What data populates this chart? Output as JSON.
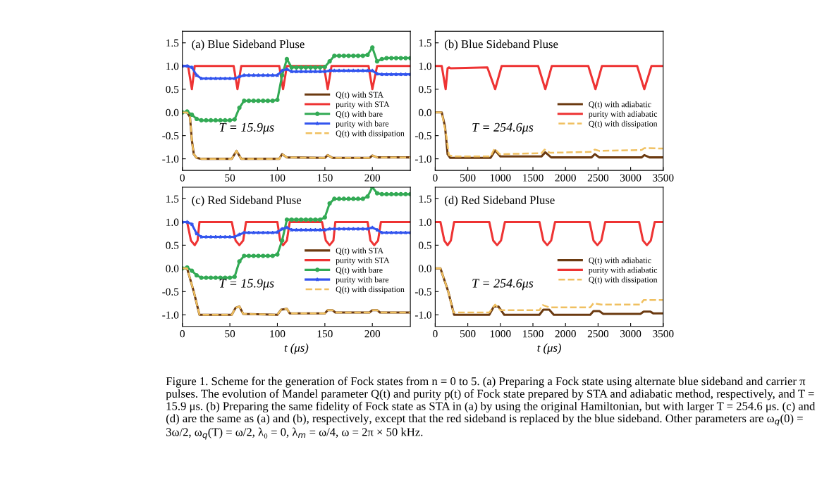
{
  "chart_data": [
    {
      "type": "line",
      "title": "(a) Blue Sideband Pluse",
      "xlim": [
        0,
        240
      ],
      "xticks": [
        0,
        50,
        100,
        150,
        200
      ],
      "ylim": [
        -1.25,
        1.75
      ],
      "yticks": [
        {
          "value": -1,
          "label": "-1.0"
        },
        {
          "value": -0.5,
          "label": "-0.5"
        },
        {
          "value": 0,
          "label": "0.0"
        },
        {
          "value": 0.5,
          "label": "0.5"
        },
        {
          "value": 1,
          "label": "1.0"
        },
        {
          "value": 1.5,
          "label": "1.5"
        }
      ],
      "legend": "center right",
      "grid": false,
      "annotations": [
        "T = 15.9μs"
      ],
      "series": [
        {
          "name": "Q(t) with STA",
          "color": "#6b3a10",
          "x": [
            0,
            5,
            8,
            10,
            12,
            15,
            20,
            52,
            57,
            62,
            102,
            105,
            110,
            150,
            153,
            158,
            197,
            200,
            205,
            240
          ],
          "values": [
            0,
            0,
            -0.1,
            -0.6,
            -0.9,
            -0.98,
            -1,
            -1,
            -0.83,
            -1,
            -1,
            -0.9,
            -0.97,
            -0.98,
            -0.92,
            -0.98,
            -0.98,
            -0.93,
            -0.97,
            -0.97
          ]
        },
        {
          "name": "purity with STA",
          "color": "#ee3333",
          "x": [
            0,
            6,
            10,
            13,
            54,
            58,
            62,
            102,
            106,
            110,
            149,
            153,
            157,
            196,
            200,
            205,
            240
          ],
          "values": [
            1,
            1,
            0.5,
            1,
            1,
            0.5,
            1,
            1,
            0.5,
            1,
            1,
            0.5,
            1,
            1,
            0.5,
            1,
            1
          ]
        },
        {
          "name": "Q(t) with bare",
          "color": "#33aa55",
          "marker": "circle",
          "x": [
            0,
            5,
            10,
            15,
            20,
            25,
            30,
            35,
            40,
            45,
            50,
            55,
            60,
            65,
            70,
            75,
            80,
            85,
            90,
            95,
            100,
            105,
            110,
            115,
            120,
            125,
            130,
            135,
            140,
            145,
            150,
            155,
            160,
            165,
            170,
            175,
            180,
            185,
            190,
            195,
            200,
            205,
            210,
            215,
            220,
            225,
            230,
            235,
            240
          ],
          "values": [
            0,
            0.02,
            -0.05,
            -0.14,
            -0.17,
            -0.17,
            -0.17,
            -0.17,
            -0.17,
            -0.17,
            -0.17,
            -0.15,
            0.1,
            0.25,
            0.25,
            0.25,
            0.25,
            0.25,
            0.25,
            0.25,
            0.27,
            0.8,
            1.15,
            0.97,
            0.97,
            0.97,
            0.97,
            0.97,
            0.97,
            0.97,
            0.98,
            1.1,
            1.22,
            1.22,
            1.22,
            1.22,
            1.22,
            1.22,
            1.22,
            1.24,
            1.4,
            1.1,
            1.15,
            1.17,
            1.17,
            1.17,
            1.17,
            1.17,
            1.17
          ]
        },
        {
          "name": "purity with bare",
          "color": "#3355ee",
          "marker": "star",
          "x": [
            0,
            5,
            10,
            15,
            20,
            25,
            30,
            35,
            40,
            45,
            50,
            55,
            60,
            65,
            70,
            75,
            80,
            85,
            90,
            95,
            100,
            105,
            110,
            115,
            120,
            125,
            130,
            135,
            140,
            145,
            150,
            155,
            160,
            165,
            170,
            175,
            180,
            185,
            190,
            195,
            200,
            205,
            210,
            215,
            220,
            225,
            230,
            235,
            240
          ],
          "values": [
            1,
            1,
            0.97,
            0.8,
            0.73,
            0.73,
            0.73,
            0.73,
            0.73,
            0.73,
            0.73,
            0.73,
            0.77,
            0.8,
            0.8,
            0.8,
            0.8,
            0.8,
            0.8,
            0.8,
            0.8,
            0.9,
            0.93,
            0.88,
            0.88,
            0.88,
            0.88,
            0.88,
            0.88,
            0.88,
            0.88,
            0.9,
            0.9,
            0.9,
            0.9,
            0.9,
            0.9,
            0.9,
            0.9,
            0.9,
            0.9,
            0.83,
            0.82,
            0.82,
            0.82,
            0.82,
            0.82,
            0.82,
            0.82
          ]
        },
        {
          "name": "Q(t) with dissipation",
          "color": "#f0c060",
          "line_style": "dashed",
          "x": [
            0,
            5,
            8,
            10,
            12,
            15,
            20,
            52,
            57,
            62,
            102,
            105,
            110,
            150,
            153,
            158,
            197,
            200,
            205,
            240
          ],
          "values": [
            0,
            0,
            -0.1,
            -0.6,
            -0.9,
            -0.98,
            -1,
            -1,
            -0.83,
            -1,
            -1,
            -0.9,
            -0.97,
            -0.98,
            -0.92,
            -0.98,
            -0.98,
            -0.93,
            -0.97,
            -0.97
          ]
        }
      ]
    },
    {
      "type": "line",
      "title": "(b) Blue Sideband Pluse",
      "xlim": [
        0,
        3500
      ],
      "xticks": [
        0,
        500,
        1000,
        1500,
        2000,
        2500,
        3000,
        3500
      ],
      "ylim": [
        -1.25,
        1.75
      ],
      "yticks": [
        {
          "value": -1,
          "label": "-1.0"
        },
        {
          "value": -0.5,
          "label": "-0.5"
        },
        {
          "value": 0,
          "label": "0.0"
        },
        {
          "value": 0.5,
          "label": "0.5"
        },
        {
          "value": 1,
          "label": "1.0"
        },
        {
          "value": 1.5,
          "label": "1.5"
        }
      ],
      "legend": "center right",
      "grid": false,
      "annotations": [
        "T = 254.6μs"
      ],
      "series": [
        {
          "name": "Q(t) with adiabatic",
          "color": "#6b3a10",
          "x": [
            0,
            100,
            150,
            190,
            230,
            850,
            920,
            1000,
            1630,
            1690,
            1780,
            2400,
            2450,
            2520,
            3170,
            3210,
            3290,
            3500
          ],
          "values": [
            0,
            0,
            -0.3,
            -0.9,
            -0.98,
            -0.98,
            -0.82,
            -0.95,
            -0.95,
            -0.86,
            -0.97,
            -0.97,
            -0.9,
            -0.97,
            -0.97,
            -0.92,
            -0.97,
            -0.97
          ]
        },
        {
          "name": "purity with adiabatic",
          "color": "#ee3333",
          "x": [
            0,
            100,
            160,
            190,
            210,
            240,
            800,
            920,
            1020,
            1580,
            1690,
            1790,
            2350,
            2460,
            2560,
            3100,
            3210,
            3320,
            3500
          ],
          "values": [
            1,
            1,
            0.5,
            0.95,
            0.97,
            0.95,
            0.97,
            0.5,
            1,
            1,
            0.5,
            1,
            1,
            0.5,
            1,
            1,
            0.5,
            1,
            1
          ]
        },
        {
          "name": "Q(t) with dissipation",
          "color": "#f0c060",
          "line_style": "dashed",
          "x": [
            0,
            100,
            170,
            210,
            280,
            850,
            910,
            990,
            1630,
            1680,
            1760,
            2400,
            2450,
            2520,
            3170,
            3210,
            3500
          ],
          "values": [
            0,
            0,
            -0.5,
            -0.92,
            -0.95,
            -0.95,
            -0.78,
            -0.9,
            -0.88,
            -0.8,
            -0.87,
            -0.85,
            -0.8,
            -0.83,
            -0.81,
            -0.77,
            -0.78
          ]
        }
      ]
    },
    {
      "type": "line",
      "title": "(c) Red Sideband Pluse",
      "xlabel": "t (μs)",
      "xlim": [
        0,
        240
      ],
      "xticks": [
        0,
        50,
        100,
        150,
        200
      ],
      "ylim": [
        -1.25,
        1.75
      ],
      "yticks": [
        {
          "value": -1,
          "label": "-1.0"
        },
        {
          "value": -0.5,
          "label": "-0.5"
        },
        {
          "value": 0,
          "label": "0.0"
        },
        {
          "value": 0.5,
          "label": "0.5"
        },
        {
          "value": 1,
          "label": "1.0"
        },
        {
          "value": 1.5,
          "label": "1.5"
        }
      ],
      "legend": "center right",
      "grid": false,
      "annotations": [
        "T = 15.9μs"
      ],
      "series": [
        {
          "name": "Q(t) with STA",
          "color": "#6b3a10",
          "x": [
            0,
            5,
            12,
            18,
            52,
            56,
            60,
            64,
            100,
            104,
            110,
            113,
            150,
            153,
            158,
            161,
            197,
            200,
            205,
            208,
            240
          ],
          "values": [
            0,
            0,
            -0.5,
            -1,
            -1,
            -0.85,
            -0.82,
            -0.98,
            -1,
            -0.89,
            -0.87,
            -0.97,
            -0.97,
            -0.9,
            -0.9,
            -0.95,
            -0.95,
            -0.9,
            -0.9,
            -0.95,
            -0.95
          ]
        },
        {
          "name": "purity with STA",
          "color": "#ee3333",
          "x": [
            0,
            5,
            9,
            13,
            16,
            18,
            52,
            56,
            60,
            64,
            67,
            100,
            103,
            106,
            110,
            113,
            147,
            151,
            155,
            159,
            161,
            195,
            198,
            202,
            206,
            209,
            240
          ],
          "values": [
            1,
            1,
            0.6,
            0.5,
            0.6,
            1,
            1,
            0.6,
            0.5,
            0.6,
            1,
            1,
            0.6,
            0.5,
            0.6,
            1,
            1,
            0.6,
            0.5,
            0.6,
            1,
            1,
            0.6,
            0.5,
            0.6,
            1,
            1
          ]
        },
        {
          "name": "Q(t) with bare",
          "color": "#33aa55",
          "marker": "circle",
          "x": [
            0,
            5,
            10,
            15,
            20,
            25,
            30,
            35,
            40,
            45,
            50,
            55,
            60,
            65,
            70,
            75,
            80,
            85,
            90,
            95,
            100,
            105,
            110,
            115,
            120,
            125,
            130,
            135,
            140,
            145,
            150,
            155,
            160,
            165,
            170,
            175,
            180,
            185,
            190,
            195,
            200,
            205,
            210,
            215,
            220,
            225,
            230,
            235,
            240
          ],
          "values": [
            0,
            0.02,
            -0.05,
            -0.15,
            -0.2,
            -0.2,
            -0.2,
            -0.2,
            -0.2,
            -0.2,
            -0.2,
            -0.18,
            0.15,
            0.27,
            0.27,
            0.27,
            0.27,
            0.27,
            0.27,
            0.27,
            0.3,
            0.6,
            1.05,
            1.05,
            1.05,
            1.05,
            1.05,
            1.05,
            1.05,
            1.05,
            1.1,
            1.4,
            1.5,
            1.5,
            1.5,
            1.5,
            1.5,
            1.5,
            1.5,
            1.55,
            1.75,
            1.62,
            1.6,
            1.6,
            1.6,
            1.6,
            1.6,
            1.6,
            1.6
          ]
        },
        {
          "name": "purity with bare",
          "color": "#3355ee",
          "marker": "star",
          "x": [
            0,
            5,
            10,
            15,
            20,
            25,
            30,
            35,
            40,
            45,
            50,
            55,
            60,
            65,
            70,
            75,
            80,
            85,
            90,
            95,
            100,
            105,
            110,
            115,
            120,
            125,
            130,
            135,
            140,
            145,
            150,
            155,
            160,
            165,
            170,
            175,
            180,
            185,
            190,
            195,
            200,
            205,
            210,
            215,
            220,
            225,
            230,
            235,
            240
          ],
          "values": [
            1,
            1,
            0.95,
            0.75,
            0.68,
            0.68,
            0.68,
            0.68,
            0.68,
            0.68,
            0.68,
            0.68,
            0.73,
            0.77,
            0.77,
            0.77,
            0.77,
            0.77,
            0.77,
            0.77,
            0.78,
            0.85,
            0.88,
            0.83,
            0.83,
            0.83,
            0.83,
            0.83,
            0.83,
            0.83,
            0.83,
            0.85,
            0.85,
            0.85,
            0.85,
            0.85,
            0.85,
            0.85,
            0.85,
            0.85,
            0.88,
            0.83,
            0.77,
            0.77,
            0.77,
            0.77,
            0.77,
            0.77,
            0.77
          ]
        },
        {
          "name": "Q(t) with dissipation",
          "color": "#f0c060",
          "line_style": "dashed",
          "x": [
            0,
            5,
            12,
            18,
            52,
            56,
            60,
            64,
            100,
            104,
            110,
            113,
            150,
            153,
            158,
            161,
            197,
            200,
            205,
            208,
            240
          ],
          "values": [
            0,
            0,
            -0.5,
            -1,
            -1,
            -0.85,
            -0.82,
            -0.98,
            -1,
            -0.89,
            -0.87,
            -0.97,
            -0.97,
            -0.9,
            -0.9,
            -0.95,
            -0.95,
            -0.9,
            -0.9,
            -0.95,
            -0.95
          ]
        }
      ]
    },
    {
      "type": "line",
      "title": "(d) Red Sideband Pluse",
      "xlabel": "t (μs)",
      "xlim": [
        0,
        3500
      ],
      "xticks": [
        0,
        500,
        1000,
        1500,
        2000,
        2500,
        3000,
        3500
      ],
      "ylim": [
        -1.25,
        1.75
      ],
      "yticks": [
        {
          "value": -1,
          "label": "-1.0"
        },
        {
          "value": -0.5,
          "label": "-0.5"
        },
        {
          "value": 0,
          "label": "0.0"
        },
        {
          "value": 0.5,
          "label": "0.5"
        },
        {
          "value": 1,
          "label": "1.0"
        },
        {
          "value": 1.5,
          "label": "1.5"
        }
      ],
      "legend": "center right",
      "grid": false,
      "annotations": [
        "T = 254.6μs",
        "Figure 1. Scheme for the generation of Fock states from n = 0 to 5. (a) Preparing a Fock state using alternate blue sideband and carrier π pulses. The evolution of Mandel parameter Q(t) and purity p(t) of Fock state prepared by STA and adiabatic method, respectively, and T = 15.9 μs. (b) Preparing the same fidelity of Fock state as STA in (a) by using the original Hamiltonian, but with larger T = 254.6 μs. (c) and (d) are the same as (a) and (b), respectively, except that the red sideband is replaced by the blue sideband. Other parameters are ω$_{q}$(0) = 3ω/2, ω$_{q}$(T) = ω/2, λ₀ = 0, λ$_{m}$ = ω/4, ω = 2π × 50 kHz."
      ],
      "series": [
        {
          "name": "Q(t) with adiabatic",
          "color": "#6b3a10",
          "x": [
            0,
            80,
            200,
            290,
            830,
            900,
            970,
            1060,
            1600,
            1660,
            1750,
            1820,
            2380,
            2430,
            2520,
            2580,
            3150,
            3200,
            3300,
            3350,
            3500
          ],
          "values": [
            0,
            0,
            -0.5,
            -1,
            -1,
            -0.82,
            -0.82,
            -1,
            -1,
            -0.89,
            -0.89,
            -1,
            -1,
            -0.92,
            -0.92,
            -0.98,
            -0.98,
            -0.93,
            -0.93,
            -0.97,
            -0.97
          ]
        },
        {
          "name": "purity with adiabatic",
          "color": "#ee3333",
          "x": [
            0,
            80,
            140,
            190,
            240,
            290,
            830,
            890,
            950,
            1010,
            1070,
            1600,
            1660,
            1720,
            1780,
            1840,
            2370,
            2430,
            2490,
            2550,
            2610,
            3130,
            3190,
            3250,
            3310,
            3370,
            3500
          ],
          "values": [
            1,
            1,
            0.6,
            0.5,
            0.6,
            1,
            1,
            0.6,
            0.5,
            0.6,
            1,
            1,
            0.6,
            0.5,
            0.6,
            1,
            1,
            0.6,
            0.5,
            0.6,
            1,
            1,
            0.6,
            0.5,
            0.6,
            1,
            1
          ]
        },
        {
          "name": "Q(t) with dissipation",
          "color": "#f0c060",
          "line_style": "dashed",
          "x": [
            0,
            80,
            200,
            280,
            830,
            920,
            1000,
            1600,
            1650,
            1750,
            2380,
            2430,
            2550,
            3150,
            3200,
            3500
          ],
          "values": [
            0,
            0,
            -0.5,
            -0.95,
            -0.95,
            -0.78,
            -0.9,
            -0.9,
            -0.79,
            -0.84,
            -0.84,
            -0.75,
            -0.78,
            -0.78,
            -0.68,
            -0.68
          ]
        }
      ]
    }
  ]
}
